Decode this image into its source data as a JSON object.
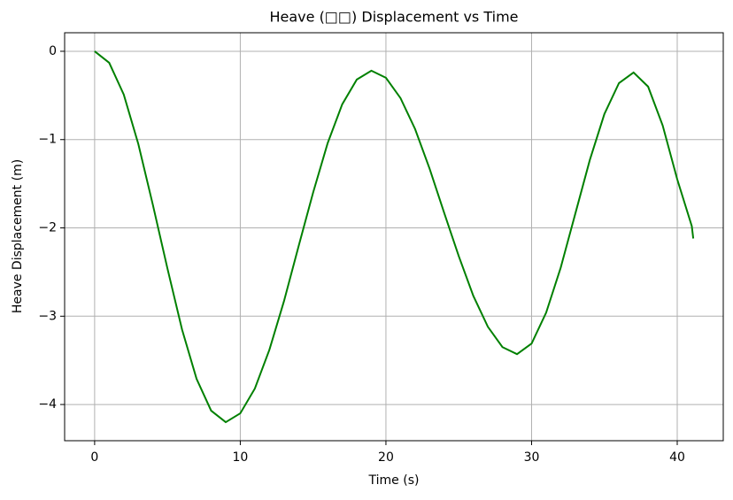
{
  "chart_data": {
    "type": "line",
    "title": "Heave (□□) Displacement vs Time",
    "xlabel": "Time (s)",
    "ylabel": "Heave Displacement (m)",
    "x": [
      0,
      1,
      2,
      3,
      4,
      5,
      6,
      7,
      8,
      9,
      10,
      11,
      12,
      13,
      14,
      15,
      16,
      17,
      18,
      19,
      20,
      21,
      22,
      23,
      24,
      25,
      26,
      27,
      28,
      29,
      30,
      31,
      32,
      33,
      34,
      35,
      36,
      37,
      38,
      39,
      40,
      41,
      41.1
    ],
    "series": [
      {
        "name": "Heave",
        "color": "#008000",
        "values": [
          0,
          -0.13,
          -0.49,
          -1.05,
          -1.74,
          -2.46,
          -3.15,
          -3.71,
          -4.07,
          -4.2,
          -4.1,
          -3.82,
          -3.38,
          -2.83,
          -2.21,
          -1.6,
          -1.04,
          -0.6,
          -0.32,
          -0.22,
          -0.3,
          -0.53,
          -0.88,
          -1.33,
          -1.83,
          -2.32,
          -2.77,
          -3.12,
          -3.35,
          -3.43,
          -3.31,
          -2.96,
          -2.45,
          -1.84,
          -1.23,
          -0.71,
          -0.36,
          -0.24,
          -0.4,
          -0.84,
          -1.45,
          -1.98,
          -2.12
        ]
      }
    ],
    "xlim": [
      -2.06,
      43.16
    ],
    "ylim": [
      -4.41,
      0.21
    ],
    "xticks": [
      0,
      10,
      20,
      30,
      40
    ],
    "yticks": [
      {
        "value": -4,
        "label": "−4"
      },
      {
        "value": -3,
        "label": "−3"
      },
      {
        "value": -2,
        "label": "−2"
      },
      {
        "value": -1,
        "label": "−1"
      },
      0
    ],
    "grid": true
  }
}
